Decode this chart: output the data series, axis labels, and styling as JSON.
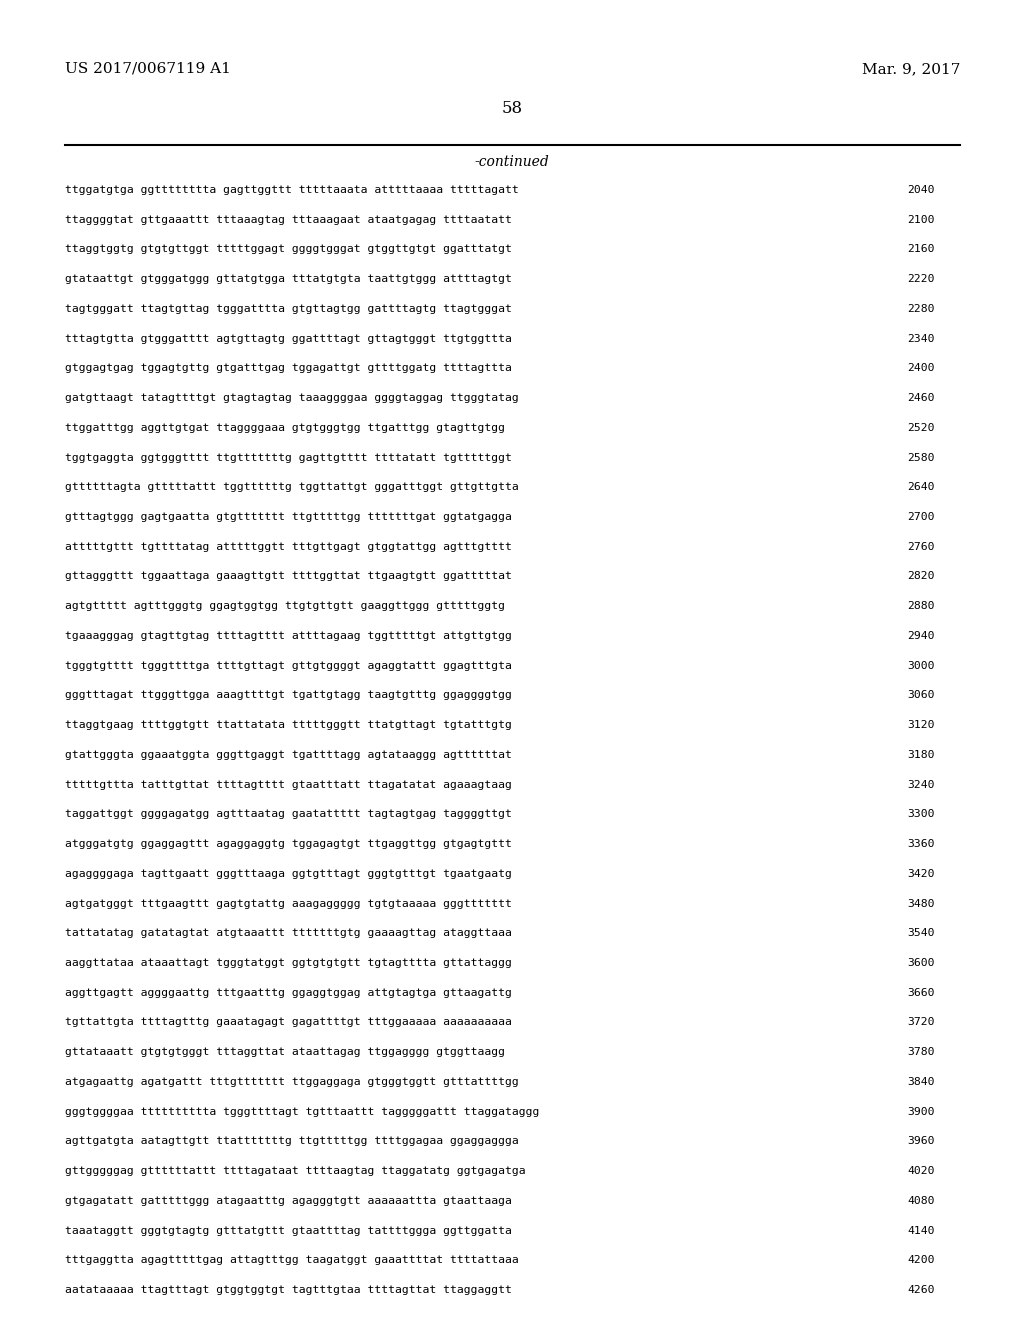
{
  "header_left": "US 2017/0067119 A1",
  "header_right": "Mar. 9, 2017",
  "page_number": "58",
  "continued_label": "-continued",
  "background_color": "#ffffff",
  "text_color": "#000000",
  "sequences": [
    [
      "ttggatgtga",
      "ggtttttttta",
      "gagttggttt",
      "tttttaaata",
      "atttttaaaa",
      "tttttagatt",
      "2040"
    ],
    [
      "ttaggggtat",
      "gttgaaattt",
      "tttaaagtag",
      "tttaaagaat",
      "ataatgagag",
      "ttttaatatt",
      "2100"
    ],
    [
      "ttaggtggtg",
      "gtgtgttggt",
      "tttttggagt",
      "ggggtgggat",
      "gtggttgtgt",
      "ggatttatgt",
      "2160"
    ],
    [
      "gtataattgt",
      "gtgggatggg",
      "gttatgtgga",
      "tttatgtgta",
      "taattgtggg",
      "attttagtgt",
      "2220"
    ],
    [
      "tagtgggatt",
      "ttagtgttag",
      "tgggatttta",
      "gtgttagtgg",
      "gattttagtg",
      "ttagtgggat",
      "2280"
    ],
    [
      "tttagtgtta",
      "gtgggatttt",
      "agtgttagtg",
      "ggattttagt",
      "gttagtgggt",
      "ttgtggttta",
      "2340"
    ],
    [
      "gtggagtgag",
      "tggagtgttg",
      "gtgatttgag",
      "tggagattgt",
      "gttttggatg",
      "ttttagttta",
      "2400"
    ],
    [
      "gatgttaagt",
      "tatagttttgt",
      "gtagtagtag",
      "taaaggggaa",
      "ggggtaggag",
      "ttgggtatag",
      "2460"
    ],
    [
      "ttggatttgg",
      "aggttgtgat",
      "ttaggggaaa",
      "gtgtgggtgg",
      "ttgatttgg",
      "gtagttgtgg",
      "2520"
    ],
    [
      "tggtgaggta",
      "ggtgggtttt",
      "ttgtttttttg",
      "gagttgtttt",
      "ttttatatt",
      "tgtttttggt",
      "2580"
    ],
    [
      "gttttttagta",
      "gtttttattt",
      "tggttttttg",
      "tggttattgt",
      "gggatttggt",
      "gttgttgtta",
      "2640"
    ],
    [
      "gtttagtggg",
      "gagtgaatta",
      "gtgttttttt",
      "ttgtttttgg",
      "tttttttgat",
      "ggtatgagga",
      "2700"
    ],
    [
      "atttttgttt",
      "tgttttatag",
      "atttttggtt",
      "tttgttgagt",
      "gtggtattgg",
      "agtttgtttt",
      "2760"
    ],
    [
      "gttagggttt",
      "tggaattaga",
      "gaaagttgtt",
      "ttttggttat",
      "ttgaagtgtt",
      "ggatttttat",
      "2820"
    ],
    [
      "agtgttttt",
      "agtttgggtg",
      "ggagtggtgg",
      "ttgtgttgtt",
      "gaaggttggg",
      "gtttttggtg",
      "2880"
    ],
    [
      "tgaaagggag",
      "gtagttgtag",
      "ttttagtttt",
      "attttagaag",
      "tggtttttgt",
      "attgttgtgg",
      "2940"
    ],
    [
      "tgggtgtttt",
      "tgggttttga",
      "ttttgttagt",
      "gttgtggggt",
      "agaggtattt",
      "ggagtttgta",
      "3000"
    ],
    [
      "gggtttagat",
      "ttgggttgga",
      "aaagttttgt",
      "tgattgtagg",
      "taagtgtttg",
      "ggaggggtgg",
      "3060"
    ],
    [
      "ttaggtgaag",
      "ttttggtgtt",
      "ttattatata",
      "tttttgggtt",
      "ttatgttagt",
      "tgtatttgtg",
      "3120"
    ],
    [
      "gtattgggta",
      "ggaaatggta",
      "gggttgaggt",
      "tgattttagg",
      "agtataaggg",
      "agttttttat",
      "3180"
    ],
    [
      "tttttgttta",
      "tatttgttat",
      "ttttagtttt",
      "gtaatttatt",
      "ttagatatat",
      "agaaagtaag",
      "3240"
    ],
    [
      "taggattggt",
      "ggggagatgg",
      "agtttaatag",
      "gaatattttt",
      "tagtagtgag",
      "taggggttgt",
      "3300"
    ],
    [
      "atgggatgtg",
      "ggaggagttt",
      "agaggaggtg",
      "tggagagtgt",
      "ttgaggttgg",
      "gtgagtgttt",
      "3360"
    ],
    [
      "agaggggaga",
      "tagttgaatt",
      "gggtttaaga",
      "ggtgtttagt",
      "gggtgtttgt",
      "tgaatgaatg",
      "3420"
    ],
    [
      "agtgatgggt",
      "tttgaagttt",
      "gagtgtattg",
      "aaagaggggg",
      "tgtgtaaaaa",
      "gggttttttt",
      "3480"
    ],
    [
      "tattatatag",
      "gatatagtat",
      "atgtaaattt",
      "tttttttgtg",
      "gaaaagttag",
      "ataggttaaa",
      "3540"
    ],
    [
      "aaggttataa",
      "ataaattagt",
      "tgggtatggt",
      "ggtgtgtgtt",
      "tgtagtttta",
      "gttattaggg",
      "3600"
    ],
    [
      "aggttgagtt",
      "aggggaattg",
      "tttgaatttg",
      "ggaggtggag",
      "attgtagtga",
      "gttaagattg",
      "3660"
    ],
    [
      "tgttattgta",
      "ttttagtttg",
      "gaaatagagt",
      "gagattttgt",
      "tttggaaaaa",
      "aaaaaaaaaa",
      "3720"
    ],
    [
      "gttataaatt",
      "gtgtgtgggt",
      "tttaggttat",
      "ataattagag",
      "ttggagggg",
      "gtggttaagg",
      "3780"
    ],
    [
      "atgagaattg",
      "agatgattt",
      "tttgttttttt",
      "ttggaggaga",
      "gtgggtggtt",
      "gtttattttgg",
      "3840"
    ],
    [
      "gggtggggaa",
      "tttttttttta",
      "tgggttttagt",
      "tgtttaattt",
      "tagggggattt",
      "ttaggataggg",
      "3900"
    ],
    [
      "agttgatgta",
      "aatagttgtt",
      "ttatttttttg",
      "ttgtttttgg",
      "ttttggagaa",
      "ggaggaggga",
      "3960"
    ],
    [
      "gttgggggag",
      "gttttttattt",
      "ttttagataat",
      "ttttaagtag",
      "ttaggatatg",
      "ggtgagatga",
      "4020"
    ],
    [
      "gtgagatatt",
      "gatttttggg",
      "atagaatttg",
      "agagggtgtt",
      "aaaaaattta",
      "gtaattaaga",
      "4080"
    ],
    [
      "taaataggtt",
      "gggtgtagtg",
      "gtttatgttt",
      "gtaattttag",
      "tattttggga",
      "ggttggatta",
      "4140"
    ],
    [
      "tttgaggtta",
      "agagtttttgag",
      "attagtttgg",
      "taagatggt",
      "gaaattttat",
      "ttttattaaa",
      "4200"
    ],
    [
      "aatataaaaa",
      "ttagtttagt",
      "gtggtggtgt",
      "tagtttgtaa",
      "ttttagttat",
      "ttaggaggtt",
      "4260"
    ]
  ]
}
